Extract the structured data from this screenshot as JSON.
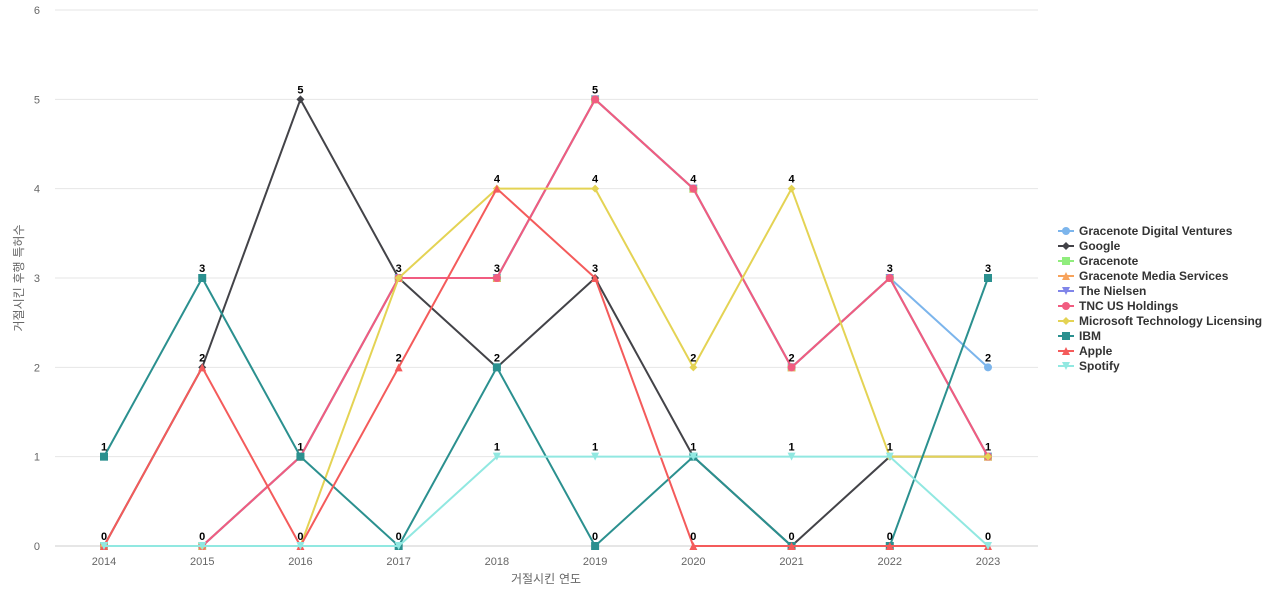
{
  "chart_data": {
    "type": "line",
    "xlabel": "거절시킨 연도",
    "ylabel": "거절시킨 후행 특허수",
    "x": [
      "2014",
      "2015",
      "2016",
      "2017",
      "2018",
      "2019",
      "2020",
      "2021",
      "2022",
      "2023"
    ],
    "ylim": [
      0,
      6
    ],
    "yticks": [
      0,
      1,
      2,
      3,
      4,
      5,
      6
    ],
    "grid": true,
    "legend_position": "right",
    "series": [
      {
        "name": "Gracenote Digital Ventures",
        "color": "#7cb5ec",
        "marker": "circle",
        "values": [
          0,
          0,
          1,
          3,
          3,
          5,
          4,
          2,
          3,
          2
        ]
      },
      {
        "name": "Google",
        "color": "#434348",
        "marker": "diamond",
        "values": [
          0,
          2,
          5,
          3,
          2,
          3,
          1,
          0,
          1,
          1
        ]
      },
      {
        "name": "Gracenote",
        "color": "#90ed7d",
        "marker": "square",
        "values": [
          0,
          0,
          1,
          3,
          3,
          5,
          4,
          2,
          3,
          1
        ]
      },
      {
        "name": "Gracenote Media Services",
        "color": "#f7a35c",
        "marker": "triangle",
        "values": [
          0,
          0,
          1,
          3,
          3,
          5,
          4,
          2,
          3,
          1
        ]
      },
      {
        "name": "The Nielsen",
        "color": "#8085e9",
        "marker": "triangle-down",
        "values": [
          0,
          0,
          1,
          3,
          3,
          5,
          4,
          2,
          3,
          1
        ]
      },
      {
        "name": "TNC US Holdings",
        "color": "#f15c80",
        "marker": "circle",
        "values": [
          0,
          0,
          1,
          3,
          3,
          5,
          4,
          2,
          3,
          1
        ]
      },
      {
        "name": "Microsoft Technology Licensing",
        "color": "#e4d354",
        "marker": "diamond",
        "values": [
          0,
          0,
          0,
          3,
          4,
          4,
          2,
          4,
          1,
          1
        ]
      },
      {
        "name": "IBM",
        "color": "#2b908f",
        "marker": "square",
        "values": [
          1,
          3,
          1,
          0,
          2,
          0,
          1,
          0,
          0,
          3
        ]
      },
      {
        "name": "Apple",
        "color": "#f45b5b",
        "marker": "triangle",
        "values": [
          0,
          2,
          0,
          2,
          4,
          3,
          0,
          0,
          0,
          0
        ]
      },
      {
        "name": "Spotify",
        "color": "#91e8e1",
        "marker": "triangle-down",
        "values": [
          0,
          0,
          0,
          0,
          1,
          1,
          1,
          1,
          1,
          0
        ]
      }
    ],
    "data_labels": [
      {
        "x": "2014",
        "value": 1,
        "series": "IBM"
      },
      {
        "x": "2014",
        "value": 0,
        "series": "Apple"
      },
      {
        "x": "2015",
        "value": 3,
        "series": "IBM"
      },
      {
        "x": "2015",
        "value": 2,
        "series": "Apple"
      },
      {
        "x": "2015",
        "value": 0,
        "series": "TNC US Holdings"
      },
      {
        "x": "2016",
        "value": 5,
        "series": "Google"
      },
      {
        "x": "2016",
        "value": 1,
        "series": "IBM"
      },
      {
        "x": "2016",
        "value": 0,
        "series": "Apple"
      },
      {
        "x": "2017",
        "value": 3,
        "series": "Microsoft Technology Licensing"
      },
      {
        "x": "2017",
        "value": 2,
        "series": "Apple"
      },
      {
        "x": "2017",
        "value": 0,
        "series": "IBM"
      },
      {
        "x": "2018",
        "value": 4,
        "series": "Apple"
      },
      {
        "x": "2018",
        "value": 3,
        "series": "TNC US Holdings"
      },
      {
        "x": "2018",
        "value": 2,
        "series": "IBM"
      },
      {
        "x": "2018",
        "value": 1,
        "series": "Spotify"
      },
      {
        "x": "2019",
        "value": 5,
        "series": "TNC US Holdings"
      },
      {
        "x": "2019",
        "value": 4,
        "series": "Microsoft Technology Licensing"
      },
      {
        "x": "2019",
        "value": 3,
        "series": "Apple"
      },
      {
        "x": "2019",
        "value": 1,
        "series": "Spotify"
      },
      {
        "x": "2019",
        "value": 0,
        "series": "IBM"
      },
      {
        "x": "2020",
        "value": 4,
        "series": "TNC US Holdings"
      },
      {
        "x": "2020",
        "value": 2,
        "series": "Microsoft Technology Licensing"
      },
      {
        "x": "2020",
        "value": 1,
        "series": "IBM"
      },
      {
        "x": "2020",
        "value": 0,
        "series": "Apple"
      },
      {
        "x": "2021",
        "value": 4,
        "series": "Microsoft Technology Licensing"
      },
      {
        "x": "2021",
        "value": 2,
        "series": "TNC US Holdings"
      },
      {
        "x": "2021",
        "value": 1,
        "series": "Spotify"
      },
      {
        "x": "2021",
        "value": 0,
        "series": "Apple"
      },
      {
        "x": "2022",
        "value": 3,
        "series": "TNC US Holdings"
      },
      {
        "x": "2022",
        "value": 1,
        "series": "Microsoft Technology Licensing"
      },
      {
        "x": "2022",
        "value": 0,
        "series": "Apple"
      },
      {
        "x": "2023",
        "value": 3,
        "series": "IBM"
      },
      {
        "x": "2023",
        "value": 2,
        "series": "Gracenote Digital Ventures"
      },
      {
        "x": "2023",
        "value": 1,
        "series": "TNC US Holdings"
      },
      {
        "x": "2023",
        "value": 0,
        "series": "Apple"
      }
    ]
  }
}
